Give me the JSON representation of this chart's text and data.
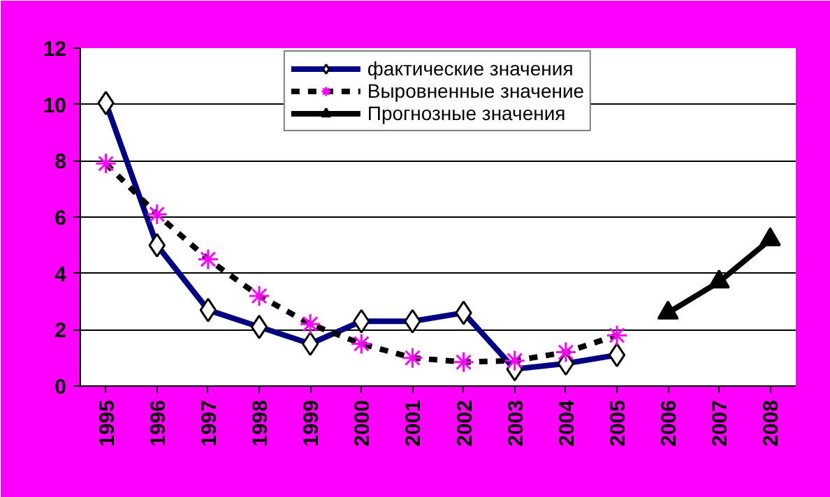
{
  "chart_data": {
    "type": "line",
    "categories": [
      "1995",
      "1996",
      "1997",
      "1998",
      "1999",
      "2000",
      "2001",
      "2002",
      "2003",
      "2004",
      "2005",
      "2006",
      "2007",
      "2008"
    ],
    "series": [
      {
        "name": "фактические значения",
        "color": "#000080",
        "marker": "diamond",
        "line_style": "solid",
        "values": [
          10.05,
          5.0,
          2.7,
          2.1,
          1.5,
          2.3,
          2.3,
          2.6,
          0.6,
          0.8,
          1.1,
          null,
          null,
          null
        ]
      },
      {
        "name": "Выровненные значение",
        "color": "#000000",
        "marker": "cross",
        "line_style": "dashed",
        "values": [
          7.9,
          6.1,
          4.5,
          3.2,
          2.2,
          1.5,
          1.0,
          0.85,
          0.9,
          1.2,
          1.8,
          null,
          null,
          null
        ]
      },
      {
        "name": "Прогнозные значения",
        "color": "#000000",
        "marker": "triangle",
        "line_style": "solid",
        "values": [
          null,
          null,
          null,
          null,
          null,
          null,
          null,
          null,
          null,
          null,
          null,
          2.6,
          3.7,
          5.2
        ]
      }
    ],
    "ylim": [
      0,
      12
    ],
    "yticks": [
      0,
      2,
      4,
      6,
      8,
      10,
      12
    ],
    "grid": "y",
    "legend": "top"
  }
}
